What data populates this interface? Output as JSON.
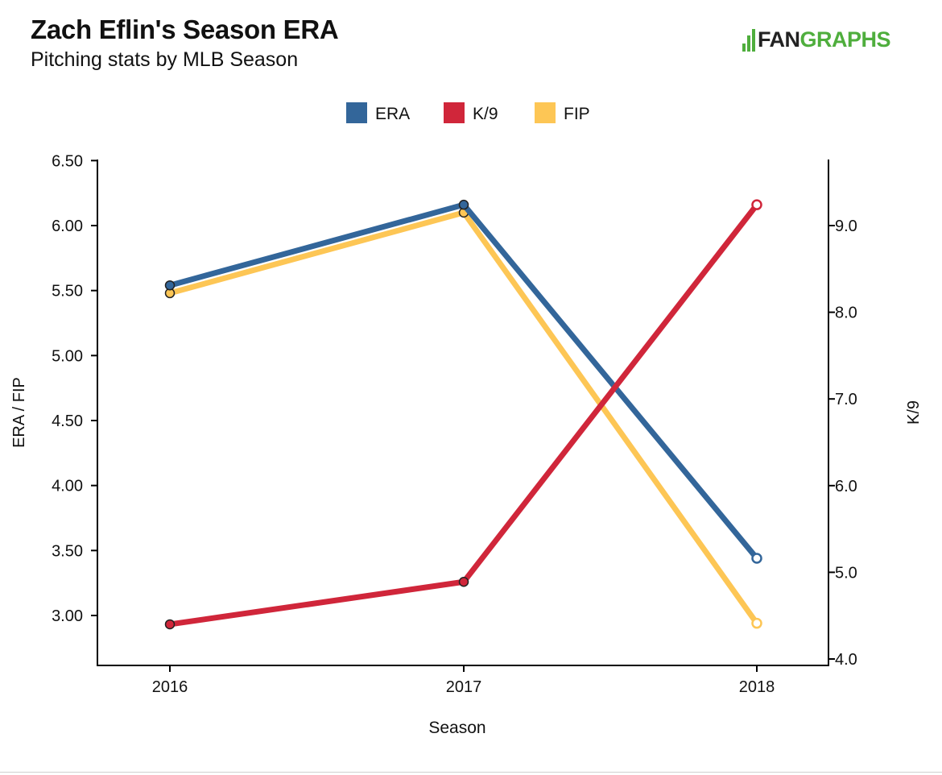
{
  "header": {
    "title": "Zach Eflin's Season ERA",
    "subtitle": "Pitching stats by MLB Season",
    "logo_fan": "FAN",
    "logo_graphs": "GRAPHS"
  },
  "chart_data": {
    "type": "line",
    "title": "Zach Eflin's Season ERA",
    "subtitle": "Pitching stats by MLB Season",
    "xlabel": "Season",
    "ylabel_left": "ERA / FIP",
    "ylabel_right": "K/9",
    "categories": [
      "2016",
      "2017",
      "2018"
    ],
    "ylim_left": [
      2.6,
      6.5
    ],
    "ylim_right": [
      3.8,
      9.8
    ],
    "yticks_left": [
      "6.50",
      "6.00",
      "5.50",
      "5.00",
      "4.50",
      "4.00",
      "3.50",
      "3.00"
    ],
    "yticks_right": [
      "9.0",
      "8.0",
      "7.0",
      "6.0",
      "5.0",
      "4.0"
    ],
    "legend_position": "top-center",
    "series": [
      {
        "name": "ERA",
        "axis": "left",
        "color": "#33669a",
        "values": [
          5.54,
          6.16,
          3.44
        ]
      },
      {
        "name": "K/9",
        "axis": "right",
        "color": "#d0263a",
        "values": [
          4.4,
          4.89,
          9.24
        ]
      },
      {
        "name": "FIP",
        "axis": "left",
        "color": "#fdc655",
        "values": [
          5.48,
          6.1,
          2.94
        ]
      }
    ]
  }
}
